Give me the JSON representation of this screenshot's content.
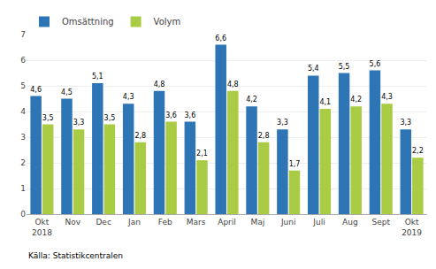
{
  "chart_data": {
    "type": "bar",
    "categories": [
      "Okt\n2018",
      "Nov",
      "Dec",
      "Jan",
      "Feb",
      "Mars",
      "April",
      "Maj",
      "Juni",
      "Juli",
      "Aug",
      "Sept",
      "Okt\n2019"
    ],
    "series": [
      {
        "name": "Omsättning",
        "color": "#2E75B6",
        "values": [
          4.6,
          4.5,
          5.1,
          4.3,
          4.8,
          3.6,
          6.6,
          4.2,
          3.3,
          5.4,
          5.5,
          5.6,
          3.3
        ],
        "value_labels": [
          "4,6",
          "4,5",
          "5,1",
          "4,3",
          "4,8",
          "3,6",
          "6,6",
          "4,2",
          "3,3",
          "5,4",
          "5,5",
          "5,6",
          "3,3"
        ]
      },
      {
        "name": "Volym",
        "color": "#AACC44",
        "values": [
          3.5,
          3.3,
          3.5,
          2.8,
          3.6,
          2.1,
          4.8,
          2.8,
          1.7,
          4.1,
          4.2,
          4.3,
          2.2
        ],
        "value_labels": [
          "3,5",
          "3,3",
          "3,5",
          "2,8",
          "3,6",
          "2,1",
          "4,8",
          "2,8",
          "1,7",
          "4,1",
          "4,2",
          "4,3",
          "2,2"
        ]
      }
    ],
    "ylim": [
      0,
      7
    ],
    "yticks": [
      0,
      1,
      2,
      3,
      4,
      5,
      6,
      7
    ],
    "grid": true,
    "legend": "upper left",
    "data_labels": true,
    "annotations": [
      "Källa: Statistikcentralen"
    ]
  }
}
